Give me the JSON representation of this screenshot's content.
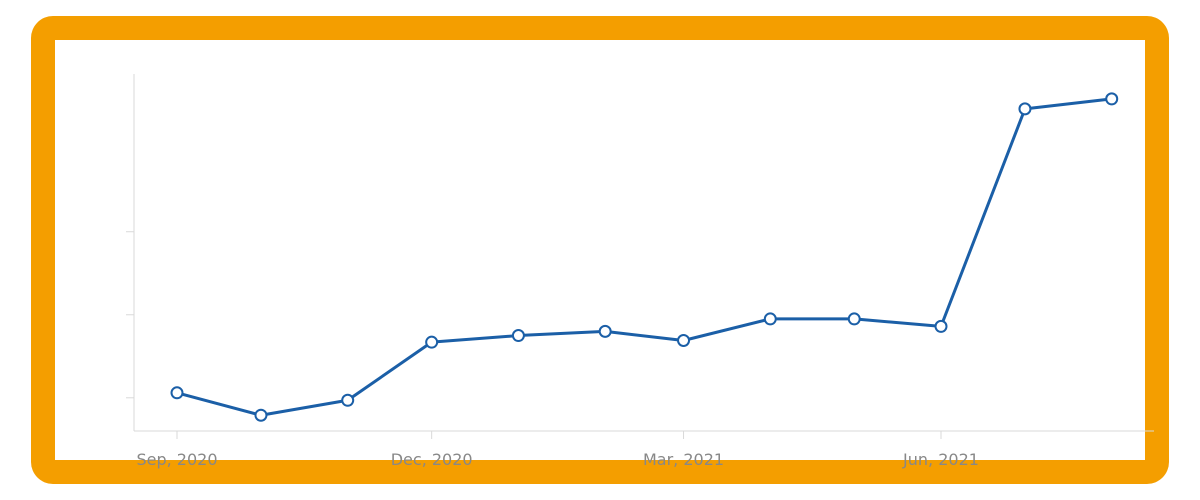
{
  "colors": {
    "frame": "#F49E00",
    "line": "#1B5FA7",
    "axis": "#D9D9D9",
    "tick_label": "#888888"
  },
  "chart_data": {
    "type": "line",
    "title": "",
    "xlabel": "",
    "ylabel": "",
    "x_tick_labels": [
      "Sep, 2020",
      "Dec, 2020",
      "Mar, 2021",
      "Jun, 2021"
    ],
    "x_tick_dates": [
      "2020-09-01",
      "2020-12-01",
      "2021-03-01",
      "2021-06-01"
    ],
    "y_tick_labels": [],
    "grid": false,
    "legend": "none",
    "series": [
      {
        "x": [
          "2020-09-01",
          "2020-10-01",
          "2020-11-01",
          "2020-12-01",
          "2021-01-01",
          "2021-02-01",
          "2021-03-01",
          "2021-04-01",
          "2021-05-01",
          "2021-06-01",
          "2021-07-01",
          "2021-08-01"
        ],
        "values": [
          1.06,
          0.79,
          0.97,
          1.67,
          1.75,
          1.8,
          1.69,
          1.95,
          1.95,
          1.86,
          4.48,
          4.6
        ]
      }
    ],
    "ylim": [
      0.6,
      4.9
    ],
    "y_ticks": [
      1,
      2,
      3
    ]
  }
}
